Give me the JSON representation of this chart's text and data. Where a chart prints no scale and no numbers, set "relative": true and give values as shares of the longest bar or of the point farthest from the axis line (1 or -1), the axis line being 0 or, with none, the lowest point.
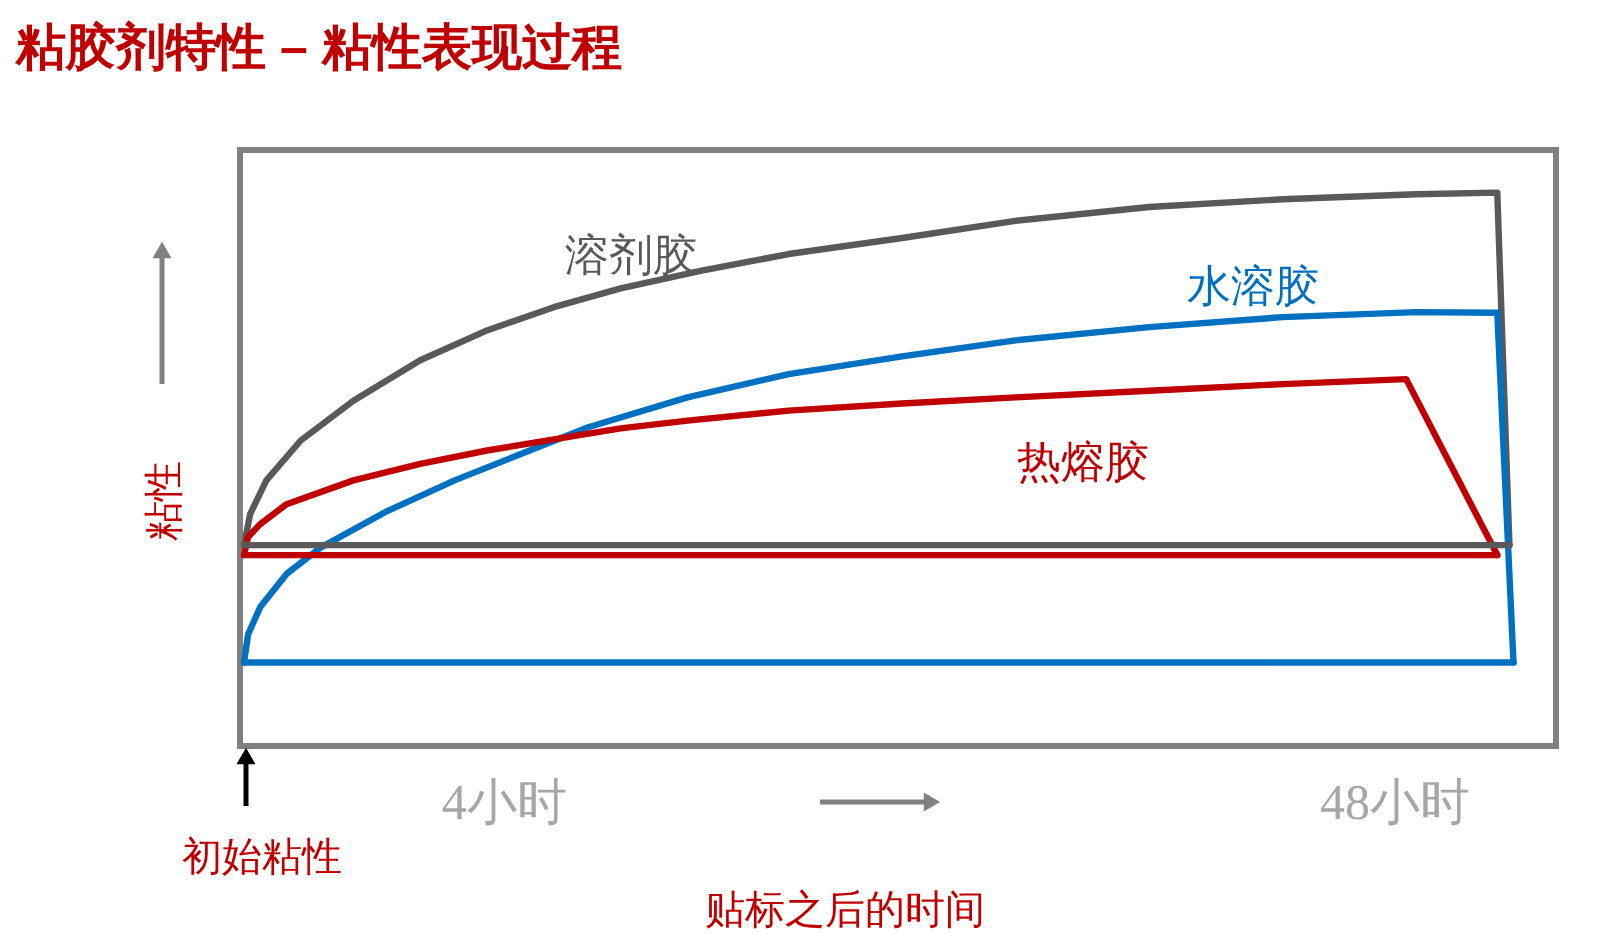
{
  "chart_data": {
    "type": "line",
    "title": "粘胶剂特性 – 粘性表现过程",
    "xlabel": "贴标之后的时间",
    "ylabel": "粘性",
    "relative": true,
    "xlim": [
      -9,
      56
    ],
    "xticks": [
      {
        "value": 4,
        "label": "4小时"
      },
      {
        "value": 48,
        "label": "48小时"
      }
    ],
    "grid": false,
    "line_style": "solid",
    "annotations": [
      "初始粘性"
    ],
    "series": [
      {
        "name": "溶剂胶",
        "color": "#595959",
        "x": [
          -8.8,
          -8.5,
          -7.7,
          -6.0,
          -3.4,
          -0.1,
          3.2,
          6.5,
          9.8,
          13.8,
          18.1,
          23.7,
          29.3,
          35.9,
          42.5,
          49.1,
          53.1,
          53.7
        ],
        "values": [
          0.363,
          0.419,
          0.48,
          0.552,
          0.624,
          0.697,
          0.751,
          0.793,
          0.827,
          0.859,
          0.889,
          0.918,
          0.949,
          0.974,
          0.988,
          0.997,
          1.0,
          0.363
        ]
      },
      {
        "name": "水溶胶",
        "color": "#0070c0",
        "x": [
          -8.8,
          -8.6,
          -8.0,
          -6.7,
          -5.0,
          -1.7,
          1.6,
          4.9,
          8.2,
          13.1,
          18.1,
          23.7,
          29.3,
          35.9,
          42.5,
          49.1,
          53.1,
          53.9
        ],
        "values": [
          0.151,
          0.202,
          0.251,
          0.311,
          0.359,
          0.425,
          0.48,
          0.528,
          0.576,
          0.63,
          0.672,
          0.704,
          0.733,
          0.757,
          0.775,
          0.784,
          0.783,
          0.151
        ]
      },
      {
        "name": "热熔胶",
        "color": "#c00000",
        "x": [
          -8.8,
          -8.6,
          -8.0,
          -6.7,
          -3.4,
          -0.1,
          3.2,
          6.5,
          9.8,
          13.1,
          18.1,
          23.7,
          29.3,
          35.9,
          42.5,
          48.6,
          53.1
        ],
        "values": [
          0.345,
          0.378,
          0.401,
          0.437,
          0.48,
          0.51,
          0.534,
          0.554,
          0.574,
          0.588,
          0.606,
          0.619,
          0.63,
          0.642,
          0.654,
          0.663,
          0.345
        ]
      },
      {
        "color": "#595959",
        "x": [
          -8.8,
          53.7
        ],
        "values": [
          0.363,
          0.363
        ]
      },
      {
        "color": "#0070c0",
        "x": [
          -8.8,
          53.9
        ],
        "values": [
          0.151,
          0.151
        ]
      },
      {
        "color": "#c00000",
        "x": [
          -8.8,
          53.1
        ],
        "values": [
          0.345,
          0.345
        ]
      }
    ]
  }
}
